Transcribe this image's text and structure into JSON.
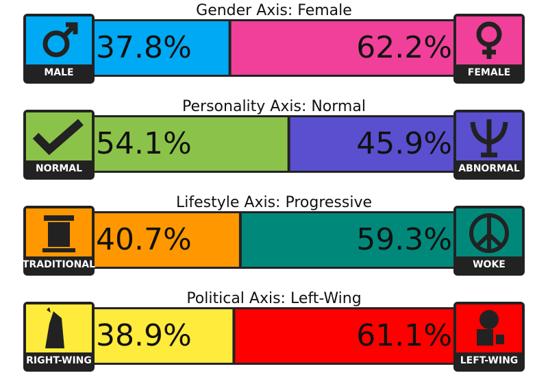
{
  "axes": [
    {
      "title": "Gender Axis: Female",
      "labels": [
        "MALE",
        "FEMALE"
      ],
      "values": [
        37.8,
        62.2
      ],
      "value_labels": [
        "37.8%",
        "62.2%"
      ],
      "colors": [
        "#00a9f4",
        "#f0409a"
      ]
    },
    {
      "title": "Personality Axis: Normal",
      "labels": [
        "NORMAL",
        "ABNORMAL"
      ],
      "values": [
        54.1,
        45.9
      ],
      "value_labels": [
        "54.1%",
        "45.9%"
      ],
      "colors": [
        "#8bc34a",
        "#5a4fcf"
      ]
    },
    {
      "title": "Lifestyle Axis: Progressive",
      "labels": [
        "TRADITIONAL",
        "WOKE"
      ],
      "values": [
        40.7,
        59.3
      ],
      "value_labels": [
        "40.7%",
        "59.3%"
      ],
      "colors": [
        "#ff9800",
        "#00897b"
      ]
    },
    {
      "title": "Political Axis: Left-Wing",
      "labels": [
        "RIGHT-WING",
        "LEFT-WING"
      ],
      "values": [
        38.9,
        61.1
      ],
      "value_labels": [
        "38.9%",
        "61.1%"
      ],
      "colors": [
        "#ffeb3b",
        "#ff0000"
      ]
    }
  ]
}
